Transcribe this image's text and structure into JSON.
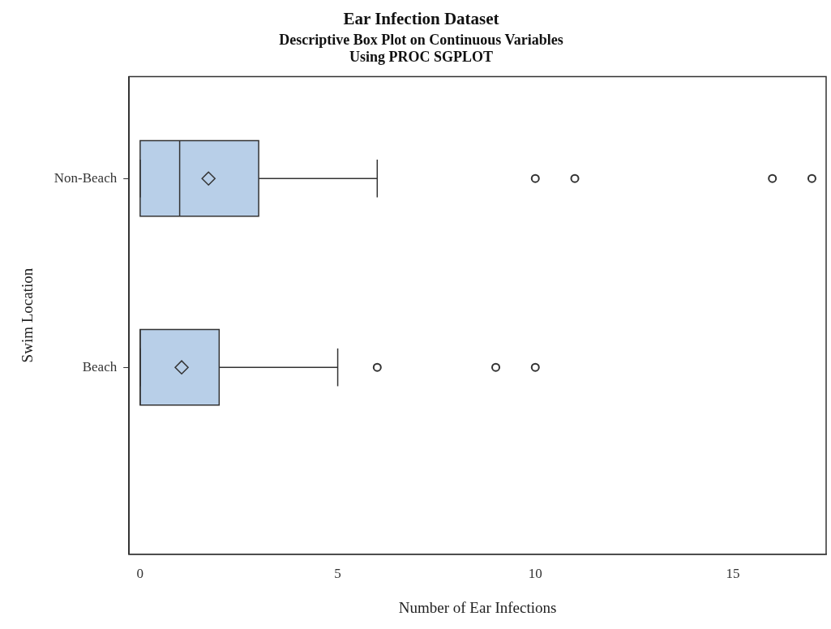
{
  "chart_data": {
    "type": "box",
    "title": "Ear Infection Dataset",
    "subtitle": "Descriptive Box Plot on Continuous Variables\nUsing PROC SGPLOT",
    "xlabel": "Number of Ear Infections",
    "ylabel": "Swim Location",
    "orientation": "horizontal",
    "categories": [
      "Non-Beach",
      "Beach"
    ],
    "color": "#b8cfe8",
    "boxes": [
      {
        "low": 0,
        "q1": 0,
        "median": 1,
        "q3": 3,
        "high": 6,
        "mean": 1.73,
        "outliers": [
          10,
          11,
          16,
          17
        ]
      },
      {
        "low": 0,
        "q1": 0,
        "median": 0,
        "q3": 2,
        "high": 5,
        "mean": 1.05,
        "outliers": [
          6,
          9,
          10
        ]
      }
    ],
    "xlim": [
      -0.28,
      17.36
    ],
    "xticks": [
      0,
      5,
      10,
      15
    ],
    "grid": false,
    "legend": false
  }
}
